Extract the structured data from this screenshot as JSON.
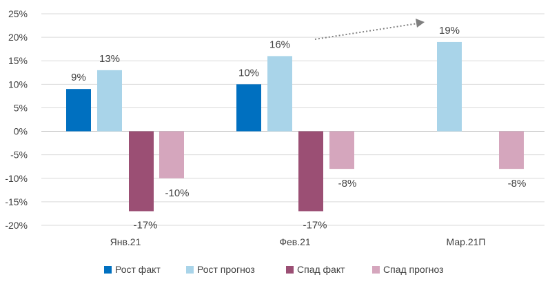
{
  "colors": {
    "grid": "#d9d9d9",
    "axis_text": "#404040",
    "arrow": "#7f7f7f"
  },
  "chart_data": {
    "type": "bar",
    "categories": [
      "Янв.21",
      "Фев.21",
      "Мар.21П"
    ],
    "ylim": [
      -20,
      25
    ],
    "y_ticks": [
      "-20%",
      "-15%",
      "-10%",
      "-5%",
      "0%",
      "5%",
      "10%",
      "15%",
      "20%",
      "25%"
    ],
    "grid": true,
    "legend_position": "bottom",
    "annotation": "dotted arrow from Feb forecast growth toward Mar forecast growth",
    "series": [
      {
        "name": "Рост факт",
        "color": "#0070c0",
        "values": [
          9,
          10,
          null
        ],
        "labels": [
          "9%",
          "10%",
          ""
        ]
      },
      {
        "name": "Рост прогноз",
        "color": "#a9d4e9",
        "values": [
          13,
          16,
          19
        ],
        "labels": [
          "13%",
          "16%",
          "19%"
        ]
      },
      {
        "name": "Спад факт",
        "color": "#9b4f74",
        "values": [
          -17,
          -17,
          null
        ],
        "labels": [
          "-17%",
          "-17%",
          ""
        ]
      },
      {
        "name": "Спад прогноз",
        "color": "#d5a6bd",
        "values": [
          -10,
          -8,
          -8
        ],
        "labels": [
          "-10%",
          "-8%",
          "-8%"
        ]
      }
    ]
  }
}
